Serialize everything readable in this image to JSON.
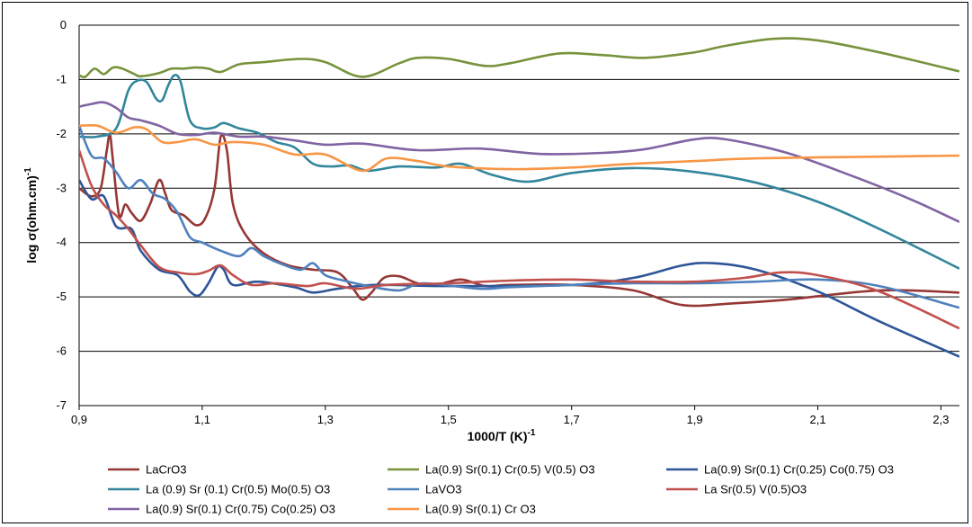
{
  "chart_data": {
    "type": "line",
    "xlabel": "1000/T (K)",
    "xlabel_sup": "-1",
    "ylabel": "log σ(ohm.cm)",
    "ylabel_sup": "-1",
    "xlim": [
      0.9,
      2.33
    ],
    "ylim": [
      -7,
      0
    ],
    "xticks": [
      "0,9",
      "1,1",
      "1,3",
      "1,5",
      "1,7",
      "1,9",
      "2,1",
      "2,3"
    ],
    "xtick_values": [
      0.9,
      1.1,
      1.3,
      1.5,
      1.7,
      1.9,
      2.1,
      2.3
    ],
    "yticks": [
      "0",
      "-1",
      "-2",
      "-3",
      "-4",
      "-5",
      "-6",
      "-7"
    ],
    "ytick_values": [
      0,
      -1,
      -2,
      -3,
      -4,
      -5,
      -6,
      -7
    ],
    "grid": "horizontal",
    "legend_position": "bottom",
    "series": [
      {
        "name": "LaCrO3",
        "color": "#953735",
        "points": [
          [
            0.9,
            -3.0
          ],
          [
            0.92,
            -3.15
          ],
          [
            0.935,
            -3.0
          ],
          [
            0.945,
            -2.3
          ],
          [
            0.95,
            -2.0
          ],
          [
            0.955,
            -2.5
          ],
          [
            0.965,
            -3.5
          ],
          [
            0.975,
            -3.3
          ],
          [
            0.985,
            -3.45
          ],
          [
            1.0,
            -3.6
          ],
          [
            1.015,
            -3.3
          ],
          [
            1.03,
            -2.85
          ],
          [
            1.04,
            -3.1
          ],
          [
            1.05,
            -3.4
          ],
          [
            1.07,
            -3.5
          ],
          [
            1.09,
            -3.68
          ],
          [
            1.105,
            -3.55
          ],
          [
            1.12,
            -3.0
          ],
          [
            1.13,
            -2.05
          ],
          [
            1.14,
            -2.3
          ],
          [
            1.15,
            -3.3
          ],
          [
            1.17,
            -3.85
          ],
          [
            1.2,
            -4.2
          ],
          [
            1.24,
            -4.42
          ],
          [
            1.28,
            -4.5
          ],
          [
            1.32,
            -4.55
          ],
          [
            1.345,
            -4.85
          ],
          [
            1.36,
            -5.05
          ],
          [
            1.375,
            -4.92
          ],
          [
            1.395,
            -4.65
          ],
          [
            1.42,
            -4.62
          ],
          [
            1.45,
            -4.75
          ],
          [
            1.48,
            -4.78
          ],
          [
            1.52,
            -4.68
          ],
          [
            1.56,
            -4.8
          ],
          [
            1.6,
            -4.78
          ],
          [
            1.7,
            -4.78
          ],
          [
            1.8,
            -4.88
          ],
          [
            1.88,
            -5.15
          ],
          [
            1.96,
            -5.12
          ],
          [
            2.05,
            -5.05
          ],
          [
            2.2,
            -4.88
          ],
          [
            2.33,
            -4.92
          ]
        ]
      },
      {
        "name": "La(0.9) Sr(0.1) Cr(0.5) V(0.5) O3",
        "color": "#77933C",
        "points": [
          [
            0.9,
            -0.92
          ],
          [
            0.91,
            -0.95
          ],
          [
            0.925,
            -0.8
          ],
          [
            0.94,
            -0.9
          ],
          [
            0.955,
            -0.78
          ],
          [
            0.97,
            -0.8
          ],
          [
            0.99,
            -0.9
          ],
          [
            1.0,
            -0.94
          ],
          [
            1.03,
            -0.88
          ],
          [
            1.05,
            -0.8
          ],
          [
            1.07,
            -0.8
          ],
          [
            1.09,
            -0.78
          ],
          [
            1.11,
            -0.8
          ],
          [
            1.13,
            -0.86
          ],
          [
            1.16,
            -0.72
          ],
          [
            1.2,
            -0.68
          ],
          [
            1.26,
            -0.62
          ],
          [
            1.3,
            -0.68
          ],
          [
            1.36,
            -0.95
          ],
          [
            1.42,
            -0.7
          ],
          [
            1.45,
            -0.6
          ],
          [
            1.5,
            -0.62
          ],
          [
            1.56,
            -0.75
          ],
          [
            1.6,
            -0.7
          ],
          [
            1.68,
            -0.52
          ],
          [
            1.75,
            -0.55
          ],
          [
            1.82,
            -0.6
          ],
          [
            1.9,
            -0.5
          ],
          [
            1.95,
            -0.38
          ],
          [
            2.03,
            -0.25
          ],
          [
            2.1,
            -0.28
          ],
          [
            2.2,
            -0.5
          ],
          [
            2.33,
            -0.85
          ]
        ]
      },
      {
        "name": "La(0.9) Sr(0.1) Cr(0.25) Co(0.75) O3",
        "color": "#2E5597",
        "points": [
          [
            0.9,
            -2.85
          ],
          [
            0.92,
            -3.2
          ],
          [
            0.94,
            -3.15
          ],
          [
            0.96,
            -3.7
          ],
          [
            0.985,
            -3.75
          ],
          [
            1.0,
            -4.15
          ],
          [
            1.03,
            -4.5
          ],
          [
            1.06,
            -4.6
          ],
          [
            1.08,
            -4.9
          ],
          [
            1.095,
            -4.97
          ],
          [
            1.11,
            -4.75
          ],
          [
            1.125,
            -4.45
          ],
          [
            1.135,
            -4.5
          ],
          [
            1.15,
            -4.78
          ],
          [
            1.19,
            -4.72
          ],
          [
            1.25,
            -4.82
          ],
          [
            1.28,
            -4.92
          ],
          [
            1.32,
            -4.85
          ],
          [
            1.38,
            -4.78
          ],
          [
            1.5,
            -4.8
          ],
          [
            1.7,
            -4.78
          ],
          [
            1.8,
            -4.65
          ],
          [
            1.88,
            -4.42
          ],
          [
            1.93,
            -4.38
          ],
          [
            2.0,
            -4.5
          ],
          [
            2.1,
            -4.9
          ],
          [
            2.2,
            -5.45
          ],
          [
            2.33,
            -6.1
          ]
        ]
      },
      {
        "name": "La (0.9) Sr (0.1) Cr(0.5) Mo(0.5) O3",
        "color": "#31859C",
        "points": [
          [
            0.9,
            -2.05
          ],
          [
            0.93,
            -2.05
          ],
          [
            0.96,
            -1.9
          ],
          [
            0.98,
            -1.2
          ],
          [
            0.995,
            -1.02
          ],
          [
            1.01,
            -1.05
          ],
          [
            1.025,
            -1.35
          ],
          [
            1.035,
            -1.38
          ],
          [
            1.045,
            -1.1
          ],
          [
            1.055,
            -0.92
          ],
          [
            1.065,
            -1.05
          ],
          [
            1.08,
            -1.75
          ],
          [
            1.1,
            -1.9
          ],
          [
            1.12,
            -1.88
          ],
          [
            1.135,
            -1.8
          ],
          [
            1.16,
            -1.9
          ],
          [
            1.19,
            -1.98
          ],
          [
            1.22,
            -2.15
          ],
          [
            1.25,
            -2.25
          ],
          [
            1.28,
            -2.55
          ],
          [
            1.31,
            -2.6
          ],
          [
            1.34,
            -2.58
          ],
          [
            1.37,
            -2.68
          ],
          [
            1.42,
            -2.6
          ],
          [
            1.48,
            -2.62
          ],
          [
            1.52,
            -2.55
          ],
          [
            1.57,
            -2.75
          ],
          [
            1.63,
            -2.88
          ],
          [
            1.7,
            -2.72
          ],
          [
            1.8,
            -2.63
          ],
          [
            1.9,
            -2.7
          ],
          [
            2.0,
            -2.9
          ],
          [
            2.1,
            -3.25
          ],
          [
            2.2,
            -3.75
          ],
          [
            2.33,
            -4.48
          ]
        ]
      },
      {
        "name": "LaVO3",
        "color": "#4F81BD",
        "points": [
          [
            0.9,
            -1.85
          ],
          [
            0.92,
            -2.4
          ],
          [
            0.94,
            -2.45
          ],
          [
            0.96,
            -2.7
          ],
          [
            0.98,
            -3.0
          ],
          [
            1.0,
            -2.85
          ],
          [
            1.02,
            -3.1
          ],
          [
            1.04,
            -3.2
          ],
          [
            1.06,
            -3.45
          ],
          [
            1.08,
            -3.9
          ],
          [
            1.1,
            -4.0
          ],
          [
            1.13,
            -4.15
          ],
          [
            1.16,
            -4.25
          ],
          [
            1.18,
            -4.1
          ],
          [
            1.2,
            -4.25
          ],
          [
            1.23,
            -4.4
          ],
          [
            1.26,
            -4.5
          ],
          [
            1.28,
            -4.38
          ],
          [
            1.3,
            -4.6
          ],
          [
            1.33,
            -4.7
          ],
          [
            1.37,
            -4.8
          ],
          [
            1.42,
            -4.88
          ],
          [
            1.46,
            -4.75
          ],
          [
            1.55,
            -4.85
          ],
          [
            1.6,
            -4.82
          ],
          [
            1.7,
            -4.78
          ],
          [
            1.8,
            -4.75
          ],
          [
            1.9,
            -4.75
          ],
          [
            2.0,
            -4.72
          ],
          [
            2.1,
            -4.68
          ],
          [
            2.2,
            -4.8
          ],
          [
            2.33,
            -5.2
          ]
        ]
      },
      {
        "name": "La Sr(0.5) V(0.5)O3",
        "color": "#C0504D",
        "points": [
          [
            0.9,
            -2.3
          ],
          [
            0.92,
            -2.95
          ],
          [
            0.94,
            -3.3
          ],
          [
            0.96,
            -3.5
          ],
          [
            0.98,
            -3.75
          ],
          [
            1.0,
            -4.05
          ],
          [
            1.03,
            -4.45
          ],
          [
            1.06,
            -4.55
          ],
          [
            1.09,
            -4.58
          ],
          [
            1.11,
            -4.52
          ],
          [
            1.13,
            -4.42
          ],
          [
            1.15,
            -4.6
          ],
          [
            1.18,
            -4.78
          ],
          [
            1.22,
            -4.75
          ],
          [
            1.27,
            -4.8
          ],
          [
            1.3,
            -4.75
          ],
          [
            1.35,
            -4.85
          ],
          [
            1.4,
            -4.78
          ],
          [
            1.5,
            -4.75
          ],
          [
            1.6,
            -4.7
          ],
          [
            1.7,
            -4.68
          ],
          [
            1.8,
            -4.72
          ],
          [
            1.9,
            -4.72
          ],
          [
            1.98,
            -4.65
          ],
          [
            2.04,
            -4.55
          ],
          [
            2.1,
            -4.6
          ],
          [
            2.2,
            -4.9
          ],
          [
            2.33,
            -5.58
          ]
        ]
      },
      {
        "name": "La(0.9) Sr(0.1) Cr(0.75) Co(0.25) O3",
        "color": "#8064A2",
        "points": [
          [
            0.9,
            -1.5
          ],
          [
            0.92,
            -1.45
          ],
          [
            0.94,
            -1.42
          ],
          [
            0.96,
            -1.52
          ],
          [
            0.98,
            -1.7
          ],
          [
            1.0,
            -1.75
          ],
          [
            1.03,
            -1.85
          ],
          [
            1.06,
            -2.0
          ],
          [
            1.09,
            -2.02
          ],
          [
            1.12,
            -1.98
          ],
          [
            1.16,
            -2.05
          ],
          [
            1.2,
            -2.05
          ],
          [
            1.25,
            -2.12
          ],
          [
            1.3,
            -2.2
          ],
          [
            1.36,
            -2.18
          ],
          [
            1.45,
            -2.3
          ],
          [
            1.55,
            -2.27
          ],
          [
            1.65,
            -2.37
          ],
          [
            1.75,
            -2.35
          ],
          [
            1.82,
            -2.28
          ],
          [
            1.9,
            -2.1
          ],
          [
            1.95,
            -2.1
          ],
          [
            2.05,
            -2.35
          ],
          [
            2.15,
            -2.75
          ],
          [
            2.25,
            -3.2
          ],
          [
            2.33,
            -3.62
          ]
        ]
      },
      {
        "name": "La(0.9) Sr(0.1) Cr O3",
        "color": "#F79646",
        "points": [
          [
            0.9,
            -1.85
          ],
          [
            0.93,
            -1.85
          ],
          [
            0.96,
            -1.98
          ],
          [
            0.99,
            -1.88
          ],
          [
            1.01,
            -1.92
          ],
          [
            1.035,
            -2.15
          ],
          [
            1.06,
            -2.15
          ],
          [
            1.09,
            -2.1
          ],
          [
            1.12,
            -2.2
          ],
          [
            1.15,
            -2.15
          ],
          [
            1.2,
            -2.2
          ],
          [
            1.25,
            -2.38
          ],
          [
            1.3,
            -2.38
          ],
          [
            1.36,
            -2.68
          ],
          [
            1.4,
            -2.45
          ],
          [
            1.45,
            -2.5
          ],
          [
            1.5,
            -2.6
          ],
          [
            1.6,
            -2.65
          ],
          [
            1.7,
            -2.62
          ],
          [
            1.8,
            -2.55
          ],
          [
            1.9,
            -2.5
          ],
          [
            2.0,
            -2.45
          ],
          [
            2.2,
            -2.42
          ],
          [
            2.33,
            -2.4
          ]
        ]
      }
    ]
  }
}
